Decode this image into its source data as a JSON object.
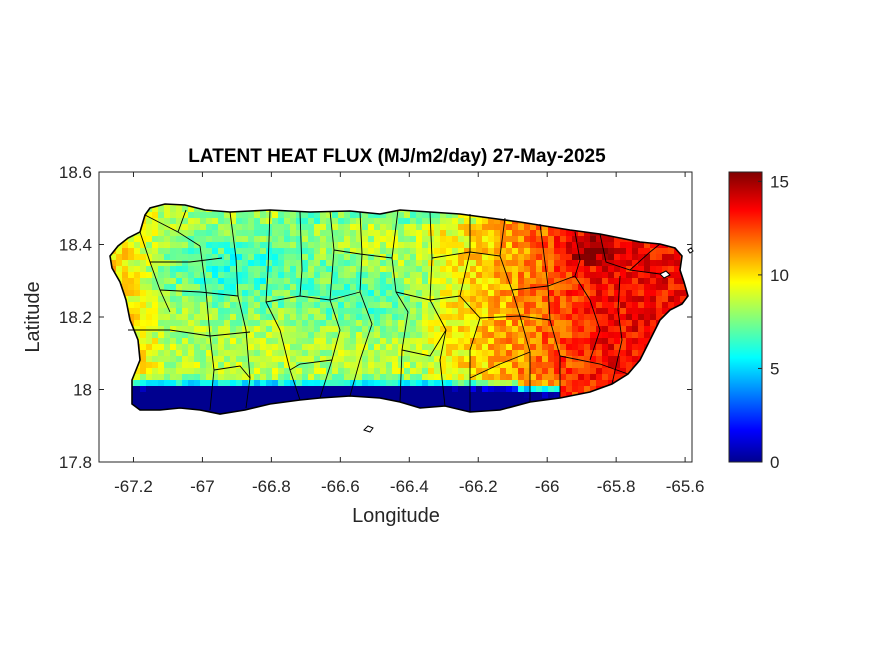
{
  "chart_data": {
    "type": "heatmap",
    "title": "LATENT HEAT FLUX (MJ/m2/day) 27-May-2025",
    "xlabel": "Longitude",
    "ylabel": "Latitude",
    "xlim": [
      -67.3,
      -65.58
    ],
    "ylim": [
      17.8,
      18.6
    ],
    "xticks": [
      -67.2,
      -67,
      -66.8,
      -66.6,
      -66.4,
      -66.2,
      -66,
      -65.8,
      -65.6
    ],
    "xtick_labels": [
      "-67.2",
      "-67",
      "-66.8",
      "-66.6",
      "-66.4",
      "-66.2",
      "-66",
      "-65.8",
      "-65.6"
    ],
    "yticks": [
      17.8,
      18,
      18.2,
      18.4,
      18.6
    ],
    "ytick_labels": [
      "17.8",
      "18",
      "18.2",
      "18.4",
      "18.6"
    ],
    "colorbar": {
      "colormap": "jet",
      "range": [
        0,
        15.5
      ],
      "ticks": [
        0,
        5,
        10,
        15
      ],
      "tick_labels": [
        "0",
        "5",
        "10",
        "15"
      ]
    },
    "grid": false,
    "colors": {
      "jet_stops": [
        "#00008f",
        "#0000ff",
        "#00ffff",
        "#ffff00",
        "#ff0000",
        "#800000"
      ]
    },
    "field_summary": {
      "east": 13.5,
      "central_interior": 9,
      "west_coast": 11,
      "south_coast": 1
    }
  }
}
